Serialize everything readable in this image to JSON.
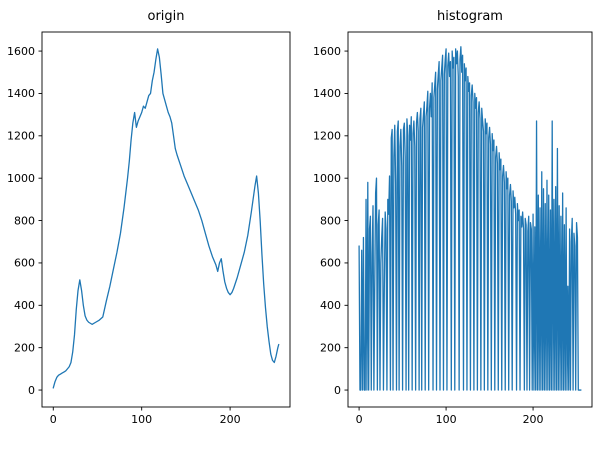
{
  "figure": {
    "background": "#ffffff"
  },
  "chart_data": [
    {
      "type": "line",
      "title": "origin",
      "xlabel": "",
      "ylabel": "",
      "color": "#1f77b4",
      "legend": null,
      "grid": false,
      "xlim": [
        -12.75,
        267.75
      ],
      "ylim": [
        -80,
        1690
      ],
      "xticks": [
        0,
        100,
        200
      ],
      "yticks": [
        0,
        200,
        400,
        600,
        800,
        1000,
        1200,
        1400,
        1600
      ],
      "x": [
        0,
        2,
        4,
        6,
        8,
        10,
        12,
        14,
        16,
        18,
        20,
        22,
        24,
        26,
        28,
        30,
        32,
        34,
        36,
        38,
        40,
        44,
        48,
        52,
        56,
        60,
        64,
        68,
        72,
        76,
        80,
        84,
        86,
        88,
        90,
        92,
        94,
        96,
        98,
        100,
        102,
        104,
        106,
        108,
        110,
        112,
        114,
        116,
        118,
        120,
        122,
        124,
        126,
        128,
        130,
        132,
        134,
        136,
        138,
        140,
        144,
        148,
        152,
        156,
        160,
        164,
        168,
        172,
        176,
        180,
        184,
        186,
        188,
        190,
        192,
        194,
        196,
        198,
        200,
        202,
        204,
        208,
        212,
        216,
        220,
        224,
        228,
        230,
        232,
        234,
        236,
        238,
        240,
        242,
        244,
        246,
        248,
        250,
        252,
        254,
        255
      ],
      "y": [
        10,
        40,
        60,
        70,
        75,
        80,
        85,
        90,
        100,
        110,
        130,
        180,
        260,
        380,
        470,
        520,
        470,
        400,
        350,
        330,
        320,
        310,
        320,
        330,
        345,
        420,
        490,
        570,
        650,
        740,
        860,
        1000,
        1080,
        1180,
        1260,
        1310,
        1240,
        1270,
        1290,
        1310,
        1340,
        1330,
        1360,
        1390,
        1400,
        1460,
        1500,
        1560,
        1610,
        1570,
        1490,
        1400,
        1370,
        1340,
        1310,
        1290,
        1260,
        1200,
        1140,
        1110,
        1060,
        1010,
        970,
        930,
        890,
        850,
        800,
        740,
        680,
        630,
        590,
        560,
        600,
        620,
        560,
        510,
        480,
        460,
        450,
        460,
        480,
        530,
        590,
        650,
        730,
        840,
        960,
        1010,
        930,
        800,
        640,
        500,
        390,
        300,
        230,
        170,
        140,
        130,
        160,
        200,
        215
      ]
    },
    {
      "type": "line",
      "title": "histogram",
      "xlabel": "",
      "ylabel": "",
      "color": "#1f77b4",
      "legend": null,
      "grid": false,
      "xlim": [
        -12.75,
        267.75
      ],
      "ylim": [
        -80,
        1690
      ],
      "xticks": [
        0,
        100,
        200
      ],
      "yticks": [
        0,
        200,
        400,
        600,
        800,
        1000,
        1200,
        1400,
        1600
      ],
      "y": [
        680,
        0,
        0,
        660,
        0,
        720,
        0,
        0,
        900,
        0,
        980,
        0,
        760,
        820,
        0,
        640,
        870,
        0,
        500,
        930,
        1000,
        0,
        780,
        850,
        0,
        600,
        720,
        810,
        0,
        480,
        840,
        760,
        0,
        900,
        830,
        1010,
        0,
        1190,
        1230,
        0,
        1100,
        1250,
        980,
        0,
        1220,
        1270,
        0,
        1150,
        1230,
        1060,
        0,
        1230,
        1260,
        1100,
        0,
        1280,
        1200,
        0,
        1250,
        1180,
        1290,
        0,
        1210,
        1270,
        1150,
        0,
        1260,
        1310,
        1220,
        0,
        1280,
        1330,
        0,
        1240,
        1300,
        1360,
        0,
        1290,
        1340,
        1410,
        0,
        1330,
        1400,
        1290,
        1450,
        0,
        1380,
        1440,
        1500,
        0,
        1420,
        1490,
        1550,
        0,
        1460,
        1520,
        1580,
        0,
        1490,
        1560,
        1610,
        0,
        1530,
        1590,
        1480,
        1550,
        0,
        1600,
        1520,
        1570,
        0,
        1610,
        1540,
        1600,
        1480,
        0,
        1560,
        1620,
        1500,
        1580,
        0,
        1540,
        1460,
        1520,
        0,
        1480,
        1410,
        1450,
        0,
        1390,
        1440,
        1360,
        0,
        1400,
        1330,
        1380,
        0,
        1310,
        1360,
        1280,
        0,
        1330,
        1270,
        1220,
        0,
        1280,
        1210,
        1260,
        0,
        1190,
        1240,
        1160,
        0,
        1210,
        1130,
        1180,
        0,
        1100,
        1150,
        1070,
        0,
        1120,
        1040,
        1090,
        0,
        1010,
        1060,
        980,
        0,
        1030,
        950,
        1000,
        0,
        920,
        970,
        890,
        0,
        940,
        860,
        910,
        830,
        0,
        880,
        800,
        850,
        0,
        820,
        770,
        840,
        760,
        0,
        810,
        780,
        0,
        750,
        820,
        0,
        790,
        760,
        0,
        830,
        0,
        770,
        0,
        1270,
        0,
        920,
        0,
        860,
        0,
        1030,
        0,
        950,
        0,
        880,
        0,
        990,
        0,
        920,
        0,
        850,
        0,
        1270,
        0,
        900,
        0,
        960,
        0,
        1140,
        0,
        870,
        0,
        820,
        0,
        930,
        0,
        780,
        0,
        860,
        0,
        490,
        0,
        760,
        0,
        700,
        810,
        0,
        740,
        680,
        0,
        790,
        720,
        0,
        0,
        0,
        0
      ]
    }
  ]
}
